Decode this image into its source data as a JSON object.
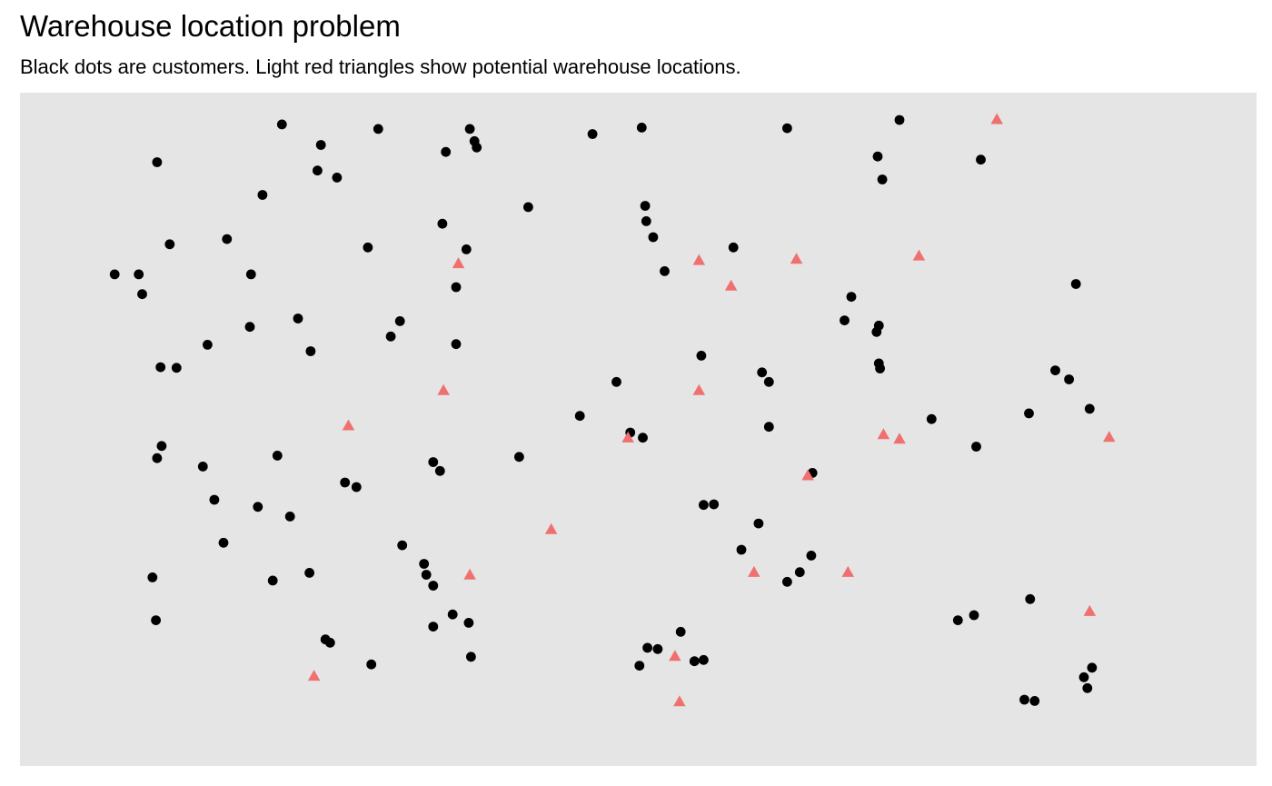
{
  "chart_data": {
    "type": "scatter",
    "title": "Warehouse location problem",
    "subtitle": "Black dots are customers. Light red triangles show potential warehouse locations.",
    "xlabel": "",
    "ylabel": "",
    "xlim": [
      0,
      100
    ],
    "ylim": [
      0,
      100
    ],
    "grid": false,
    "axes_visible": false,
    "colors": {
      "panel": "#e5e5e5",
      "customer": "#000000",
      "warehouse": "#f07070"
    },
    "series": [
      {
        "marker": "circle",
        "points": [
          [
            8.0,
            91.7
          ],
          [
            18.9,
            97.6
          ],
          [
            22.3,
            94.4
          ],
          [
            27.3,
            96.9
          ],
          [
            33.2,
            93.3
          ],
          [
            35.9,
            94.0
          ],
          [
            35.7,
            95.0
          ],
          [
            35.3,
            96.9
          ],
          [
            46.0,
            96.1
          ],
          [
            50.3,
            97.1
          ],
          [
            63.0,
            97.0
          ],
          [
            72.8,
            98.3
          ],
          [
            79.9,
            92.1
          ],
          [
            22.0,
            90.4
          ],
          [
            23.7,
            89.3
          ],
          [
            17.2,
            86.6
          ],
          [
            40.4,
            84.7
          ],
          [
            32.9,
            82.1
          ],
          [
            50.6,
            84.9
          ],
          [
            9.1,
            78.9
          ],
          [
            14.1,
            79.7
          ],
          [
            26.4,
            78.4
          ],
          [
            35.0,
            78.1
          ],
          [
            50.7,
            82.5
          ],
          [
            51.3,
            80.0
          ],
          [
            58.3,
            78.4
          ],
          [
            71.3,
            89.0
          ],
          [
            70.9,
            92.6
          ],
          [
            6.4,
            74.2
          ],
          [
            4.3,
            74.2
          ],
          [
            16.2,
            74.2
          ],
          [
            34.1,
            72.2
          ],
          [
            52.3,
            74.7
          ],
          [
            88.2,
            72.7
          ],
          [
            68.6,
            70.7
          ],
          [
            68.0,
            67.0
          ],
          [
            71.0,
            66.2
          ],
          [
            6.7,
            71.1
          ],
          [
            16.1,
            66.0
          ],
          [
            20.3,
            67.3
          ],
          [
            29.2,
            66.9
          ],
          [
            34.1,
            63.3
          ],
          [
            28.4,
            64.5
          ],
          [
            21.4,
            62.2
          ],
          [
            70.8,
            65.2
          ],
          [
            71.0,
            60.3
          ],
          [
            60.8,
            58.9
          ],
          [
            55.5,
            61.5
          ],
          [
            48.1,
            57.4
          ],
          [
            44.9,
            52.1
          ],
          [
            49.3,
            49.5
          ],
          [
            61.4,
            50.4
          ],
          [
            61.4,
            57.4
          ],
          [
            65.2,
            43.2
          ],
          [
            59.0,
            31.2
          ],
          [
            75.6,
            51.6
          ],
          [
            79.5,
            47.3
          ],
          [
            84.1,
            52.5
          ],
          [
            89.4,
            53.2
          ],
          [
            86.4,
            59.2
          ],
          [
            87.6,
            57.8
          ],
          [
            71.1,
            59.5
          ],
          [
            8.3,
            59.7
          ],
          [
            12.0,
            44.2
          ],
          [
            12.4,
            63.2
          ],
          [
            9.7,
            59.6
          ],
          [
            18.5,
            45.9
          ],
          [
            24.4,
            41.7
          ],
          [
            25.4,
            41.0
          ],
          [
            39.6,
            45.7
          ],
          [
            32.7,
            43.5
          ],
          [
            32.1,
            44.9
          ],
          [
            50.4,
            48.7
          ],
          [
            56.6,
            38.3
          ],
          [
            60.5,
            35.3
          ],
          [
            55.7,
            38.2
          ],
          [
            64.1,
            27.7
          ],
          [
            65.1,
            30.3
          ],
          [
            8.0,
            45.5
          ],
          [
            8.4,
            47.4
          ],
          [
            7.6,
            26.9
          ],
          [
            7.9,
            20.2
          ],
          [
            13.0,
            39.0
          ],
          [
            16.8,
            37.9
          ],
          [
            19.6,
            36.4
          ],
          [
            13.8,
            32.3
          ],
          [
            18.1,
            26.4
          ],
          [
            21.3,
            27.6
          ],
          [
            29.4,
            31.9
          ],
          [
            31.5,
            27.3
          ],
          [
            32.1,
            25.6
          ],
          [
            31.3,
            29.0
          ],
          [
            33.8,
            21.1
          ],
          [
            32.1,
            19.2
          ],
          [
            35.2,
            19.8
          ],
          [
            22.7,
            17.2
          ],
          [
            23.1,
            16.7
          ],
          [
            26.7,
            13.3
          ],
          [
            35.4,
            14.5
          ],
          [
            50.8,
            15.9
          ],
          [
            54.9,
            13.8
          ],
          [
            55.7,
            14.0
          ],
          [
            50.1,
            13.1
          ],
          [
            51.7,
            15.7
          ],
          [
            53.7,
            18.4
          ],
          [
            77.9,
            20.2
          ],
          [
            63.0,
            26.2
          ],
          [
            84.2,
            23.5
          ],
          [
            89.6,
            12.8
          ],
          [
            79.3,
            21.0
          ],
          [
            83.7,
            7.8
          ],
          [
            84.6,
            7.6
          ],
          [
            89.2,
            9.6
          ],
          [
            88.9,
            11.3
          ]
        ]
      },
      {
        "marker": "triangle",
        "points": [
          [
            81.3,
            98.3
          ],
          [
            74.5,
            77.0
          ],
          [
            63.8,
            76.5
          ],
          [
            55.3,
            76.3
          ],
          [
            58.1,
            72.3
          ],
          [
            34.3,
            75.8
          ],
          [
            33.0,
            56.0
          ],
          [
            24.7,
            50.5
          ],
          [
            49.1,
            48.6
          ],
          [
            55.3,
            56.0
          ],
          [
            71.4,
            49.1
          ],
          [
            64.8,
            42.7
          ],
          [
            72.8,
            48.4
          ],
          [
            91.1,
            48.7
          ],
          [
            42.4,
            34.3
          ],
          [
            35.3,
            27.2
          ],
          [
            68.3,
            27.6
          ],
          [
            60.1,
            27.6
          ],
          [
            53.2,
            14.5
          ],
          [
            53.6,
            7.4
          ],
          [
            21.7,
            11.4
          ],
          [
            89.4,
            21.5
          ]
        ]
      }
    ]
  }
}
